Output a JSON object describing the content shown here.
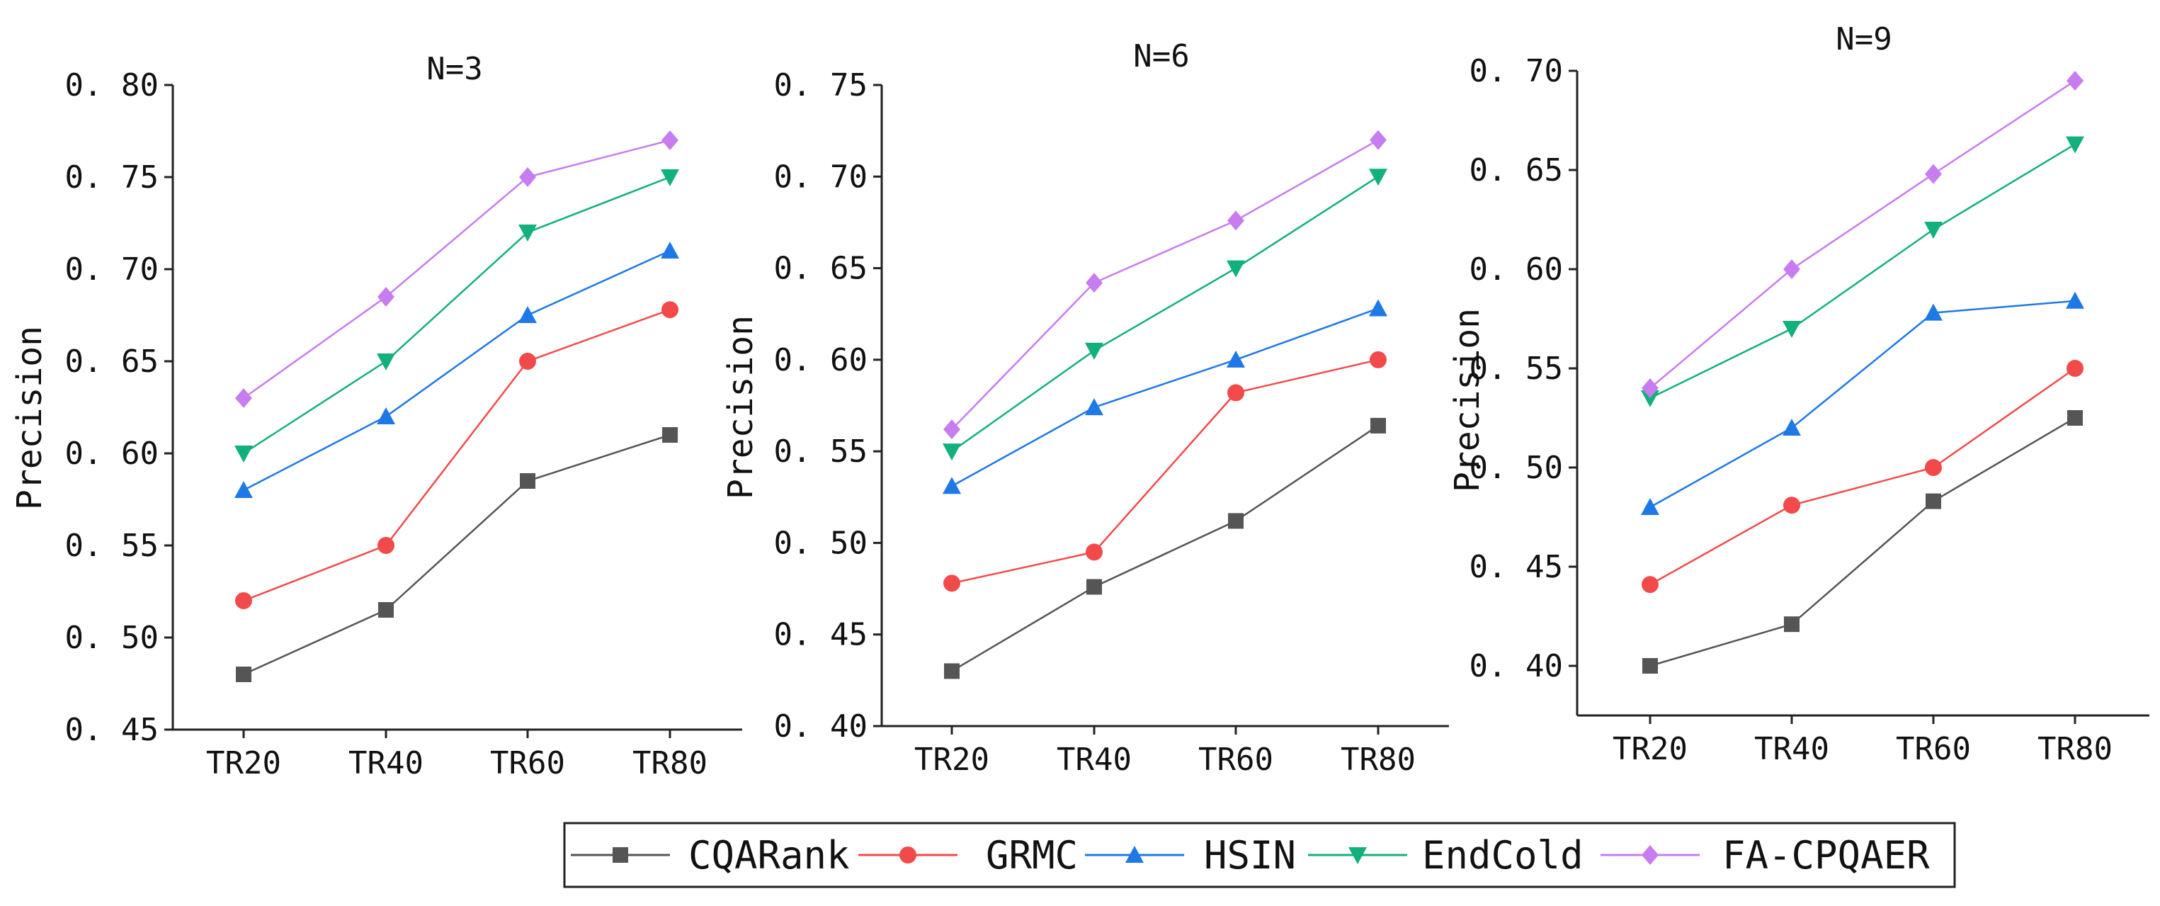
{
  "chart_data": [
    {
      "type": "line",
      "title": "N=3",
      "xlabel": "",
      "ylabel": "Precision",
      "categories": [
        "TR20",
        "TR40",
        "TR60",
        "TR80"
      ],
      "ylim": [
        0.45,
        0.8
      ],
      "yticks": [
        "0.45",
        "0.50",
        "0.55",
        "0.60",
        "0.65",
        "0.70",
        "0.75",
        "0.80"
      ],
      "series": [
        {
          "name": "CQARank",
          "values": [
            0.48,
            0.515,
            0.585,
            0.61
          ]
        },
        {
          "name": "GRMC",
          "values": [
            0.52,
            0.55,
            0.65,
            0.678
          ]
        },
        {
          "name": "HSIN",
          "values": [
            0.58,
            0.62,
            0.675,
            0.71
          ]
        },
        {
          "name": "EndCold",
          "values": [
            0.6,
            0.65,
            0.72,
            0.75
          ]
        },
        {
          "name": "FA-CPQAER",
          "values": [
            0.63,
            0.685,
            0.75,
            0.77
          ]
        }
      ]
    },
    {
      "type": "line",
      "title": "N=6",
      "xlabel": "",
      "ylabel": "Precision",
      "categories": [
        "TR20",
        "TR40",
        "TR60",
        "TR80"
      ],
      "ylim": [
        0.4,
        0.75
      ],
      "yticks": [
        "0.40",
        "0.45",
        "0.50",
        "0.55",
        "0.60",
        "0.65",
        "0.70",
        "0.75"
      ],
      "series": [
        {
          "name": "CQARank",
          "values": [
            0.43,
            0.476,
            0.512,
            0.564
          ]
        },
        {
          "name": "GRMC",
          "values": [
            0.478,
            0.495,
            0.582,
            0.6
          ]
        },
        {
          "name": "HSIN",
          "values": [
            0.531,
            0.574,
            0.6,
            0.628
          ]
        },
        {
          "name": "EndCold",
          "values": [
            0.55,
            0.605,
            0.65,
            0.7
          ]
        },
        {
          "name": "FA-CPQAER",
          "values": [
            0.562,
            0.642,
            0.676,
            0.72
          ]
        }
      ]
    },
    {
      "type": "line",
      "title": "N=9",
      "xlabel": "",
      "ylabel": "Precision",
      "categories": [
        "TR20",
        "TR40",
        "TR60",
        "TR80"
      ],
      "ylim": [
        0.375,
        0.7
      ],
      "yticks": [
        "0.40",
        "0.45",
        "0.50",
        "0.55",
        "0.60",
        "0.65",
        "0.70"
      ],
      "series": [
        {
          "name": "CQARank",
          "values": [
            0.4,
            0.421,
            0.483,
            0.525
          ]
        },
        {
          "name": "GRMC",
          "values": [
            0.441,
            0.481,
            0.5,
            0.55
          ]
        },
        {
          "name": "HSIN",
          "values": [
            0.48,
            0.52,
            0.578,
            0.584
          ]
        },
        {
          "name": "EndCold",
          "values": [
            0.535,
            0.57,
            0.62,
            0.663
          ]
        },
        {
          "name": "FA-CPQAER",
          "values": [
            0.54,
            0.6,
            0.648,
            0.695
          ]
        }
      ]
    }
  ],
  "legend": {
    "placement": "bottom-center",
    "items": [
      {
        "name": "CQARank",
        "color": "#555555",
        "marker": "square"
      },
      {
        "name": "GRMC",
        "color": "#f24a4a",
        "marker": "circle"
      },
      {
        "name": "HSIN",
        "color": "#1e78e6",
        "marker": "triangle-up"
      },
      {
        "name": "EndCold",
        "color": "#12b07a",
        "marker": "triangle-down"
      },
      {
        "name": "FA-CPQAER",
        "color": "#c77cf0",
        "marker": "diamond"
      }
    ]
  }
}
